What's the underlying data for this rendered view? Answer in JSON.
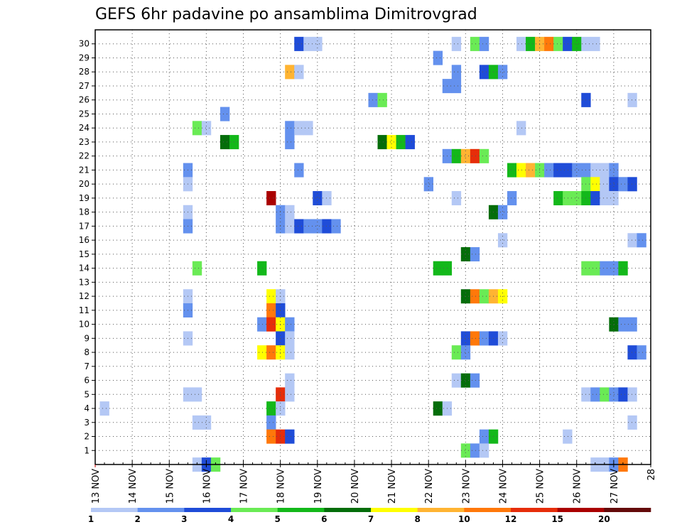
{
  "chart_data": {
    "type": "heatmap",
    "title": "GEFS 6hr padavine po ansamblima Dimitrovgrad",
    "x_tick_labels": [
      "13 NOV",
      "14 NOV",
      "15 NOV",
      "16 NOV",
      "17 NOV",
      "18 NOV",
      "19 NOV",
      "20 NOV",
      "21 NOV",
      "22 NOV",
      "23 NOV",
      "24 NOV",
      "25 NOV",
      "26 NOV",
      "27 NOV",
      "28"
    ],
    "y_tick_labels": [
      "1",
      "2",
      "3",
      "4",
      "5",
      "6",
      "7",
      "8",
      "9",
      "10",
      "11",
      "12",
      "13",
      "14",
      "15",
      "16",
      "17",
      "18",
      "19",
      "20",
      "21",
      "22",
      "23",
      "24",
      "25",
      "26",
      "27",
      "28",
      "29",
      "30"
    ],
    "grid": true,
    "time_step_hours": 6,
    "colorbar": {
      "labels": [
        "1",
        "2",
        "3",
        "4",
        "5",
        "6",
        "7",
        "8",
        "10",
        "12",
        "15",
        "20"
      ],
      "colors": [
        "#b4c8f5",
        "#6491ee",
        "#1f4cd8",
        "#6aeb55",
        "#13b81a",
        "#046d0a",
        "#ffff00",
        "#ffb432",
        "#ff780a",
        "#e62d0a",
        "#aa0000",
        "#640a0a"
      ]
    },
    "cells": [
      {
        "m": 30,
        "t": "18 NOV 12Z",
        "c": 2
      },
      {
        "m": 30,
        "t": "18 NOV 18Z",
        "c": 0
      },
      {
        "m": 30,
        "t": "19 NOV 00Z",
        "c": 0
      },
      {
        "m": 30,
        "t": "22 NOV 18Z",
        "c": 0
      },
      {
        "m": 30,
        "t": "23 NOV 06Z",
        "c": 3
      },
      {
        "m": 30,
        "t": "23 NOV 12Z",
        "c": 1
      },
      {
        "m": 30,
        "t": "24 NOV 12Z",
        "c": 0
      },
      {
        "m": 30,
        "t": "24 NOV 18Z",
        "c": 4
      },
      {
        "m": 30,
        "t": "25 NOV 00Z",
        "c": 7
      },
      {
        "m": 30,
        "t": "25 NOV 06Z",
        "c": 8
      },
      {
        "m": 30,
        "t": "25 NOV 12Z",
        "c": 3
      },
      {
        "m": 30,
        "t": "25 NOV 18Z",
        "c": 2
      },
      {
        "m": 30,
        "t": "26 NOV 00Z",
        "c": 4
      },
      {
        "m": 30,
        "t": "26 NOV 06Z",
        "c": 0
      },
      {
        "m": 30,
        "t": "26 NOV 12Z",
        "c": 0
      },
      {
        "m": 29,
        "t": "22 NOV 06Z",
        "c": 1
      },
      {
        "m": 28,
        "t": "18 NOV 06Z",
        "c": 7
      },
      {
        "m": 28,
        "t": "18 NOV 12Z",
        "c": 0
      },
      {
        "m": 28,
        "t": "22 NOV 18Z",
        "c": 1
      },
      {
        "m": 28,
        "t": "23 NOV 12Z",
        "c": 2
      },
      {
        "m": 28,
        "t": "23 NOV 18Z",
        "c": 4
      },
      {
        "m": 28,
        "t": "24 NOV 00Z",
        "c": 1
      },
      {
        "m": 27,
        "t": "22 NOV 12Z",
        "c": 1
      },
      {
        "m": 27,
        "t": "22 NOV 18Z",
        "c": 1
      },
      {
        "m": 26,
        "t": "20 NOV 12Z",
        "c": 1
      },
      {
        "m": 26,
        "t": "20 NOV 18Z",
        "c": 3
      },
      {
        "m": 26,
        "t": "26 NOV 06Z",
        "c": 2
      },
      {
        "m": 26,
        "t": "27 NOV 12Z",
        "c": 0
      },
      {
        "m": 25,
        "t": "16 NOV 12Z",
        "c": 1
      },
      {
        "m": 24,
        "t": "15 NOV 18Z",
        "c": 3
      },
      {
        "m": 24,
        "t": "16 NOV 00Z",
        "c": 0
      },
      {
        "m": 24,
        "t": "18 NOV 06Z",
        "c": 1
      },
      {
        "m": 24,
        "t": "18 NOV 12Z",
        "c": 0
      },
      {
        "m": 24,
        "t": "18 NOV 18Z",
        "c": 0
      },
      {
        "m": 24,
        "t": "24 NOV 12Z",
        "c": 0
      },
      {
        "m": 23,
        "t": "16 NOV 12Z",
        "c": 5
      },
      {
        "m": 23,
        "t": "16 NOV 18Z",
        "c": 4
      },
      {
        "m": 23,
        "t": "18 NOV 06Z",
        "c": 1
      },
      {
        "m": 23,
        "t": "20 NOV 18Z",
        "c": 5
      },
      {
        "m": 23,
        "t": "21 NOV 00Z",
        "c": 6
      },
      {
        "m": 23,
        "t": "21 NOV 06Z",
        "c": 4
      },
      {
        "m": 23,
        "t": "21 NOV 12Z",
        "c": 2
      },
      {
        "m": 22,
        "t": "22 NOV 12Z",
        "c": 1
      },
      {
        "m": 22,
        "t": "22 NOV 18Z",
        "c": 4
      },
      {
        "m": 22,
        "t": "23 NOV 00Z",
        "c": 7
      },
      {
        "m": 22,
        "t": "23 NOV 06Z",
        "c": 9
      },
      {
        "m": 22,
        "t": "23 NOV 12Z",
        "c": 3
      },
      {
        "m": 21,
        "t": "15 NOV 12Z",
        "c": 1
      },
      {
        "m": 21,
        "t": "18 NOV 12Z",
        "c": 1
      },
      {
        "m": 21,
        "t": "24 NOV 06Z",
        "c": 4
      },
      {
        "m": 21,
        "t": "24 NOV 12Z",
        "c": 6
      },
      {
        "m": 21,
        "t": "24 NOV 18Z",
        "c": 7
      },
      {
        "m": 21,
        "t": "25 NOV 00Z",
        "c": 3
      },
      {
        "m": 21,
        "t": "25 NOV 06Z",
        "c": 1
      },
      {
        "m": 21,
        "t": "25 NOV 12Z",
        "c": 2
      },
      {
        "m": 21,
        "t": "25 NOV 18Z",
        "c": 2
      },
      {
        "m": 21,
        "t": "26 NOV 00Z",
        "c": 1
      },
      {
        "m": 21,
        "t": "26 NOV 06Z",
        "c": 1
      },
      {
        "m": 21,
        "t": "26 NOV 12Z",
        "c": 0
      },
      {
        "m": 21,
        "t": "26 NOV 18Z",
        "c": 0
      },
      {
        "m": 21,
        "t": "27 NOV 00Z",
        "c": 1
      },
      {
        "m": 20,
        "t": "15 NOV 12Z",
        "c": 0
      },
      {
        "m": 20,
        "t": "22 NOV 00Z",
        "c": 1
      },
      {
        "m": 20,
        "t": "26 NOV 06Z",
        "c": 3
      },
      {
        "m": 20,
        "t": "26 NOV 12Z",
        "c": 6
      },
      {
        "m": 20,
        "t": "26 NOV 18Z",
        "c": 0
      },
      {
        "m": 20,
        "t": "27 NOV 00Z",
        "c": 2
      },
      {
        "m": 20,
        "t": "27 NOV 06Z",
        "c": 1
      },
      {
        "m": 20,
        "t": "27 NOV 12Z",
        "c": 2
      },
      {
        "m": 19,
        "t": "17 NOV 18Z",
        "c": 10
      },
      {
        "m": 19,
        "t": "19 NOV 00Z",
        "c": 2
      },
      {
        "m": 19,
        "t": "19 NOV 06Z",
        "c": 0
      },
      {
        "m": 19,
        "t": "22 NOV 18Z",
        "c": 0
      },
      {
        "m": 19,
        "t": "24 NOV 06Z",
        "c": 1
      },
      {
        "m": 19,
        "t": "25 NOV 12Z",
        "c": 4
      },
      {
        "m": 19,
        "t": "25 NOV 18Z",
        "c": 3
      },
      {
        "m": 19,
        "t": "26 NOV 00Z",
        "c": 3
      },
      {
        "m": 19,
        "t": "26 NOV 06Z",
        "c": 4
      },
      {
        "m": 19,
        "t": "26 NOV 12Z",
        "c": 2
      },
      {
        "m": 19,
        "t": "26 NOV 18Z",
        "c": 0
      },
      {
        "m": 19,
        "t": "27 NOV 00Z",
        "c": 0
      },
      {
        "m": 18,
        "t": "15 NOV 12Z",
        "c": 0
      },
      {
        "m": 18,
        "t": "18 NOV 00Z",
        "c": 1
      },
      {
        "m": 18,
        "t": "18 NOV 06Z",
        "c": 0
      },
      {
        "m": 18,
        "t": "23 NOV 18Z",
        "c": 5
      },
      {
        "m": 18,
        "t": "24 NOV 00Z",
        "c": 1
      },
      {
        "m": 17,
        "t": "15 NOV 12Z",
        "c": 1
      },
      {
        "m": 17,
        "t": "18 NOV 00Z",
        "c": 1
      },
      {
        "m": 17,
        "t": "18 NOV 06Z",
        "c": 0
      },
      {
        "m": 17,
        "t": "18 NOV 12Z",
        "c": 2
      },
      {
        "m": 17,
        "t": "18 NOV 18Z",
        "c": 1
      },
      {
        "m": 17,
        "t": "19 NOV 00Z",
        "c": 1
      },
      {
        "m": 17,
        "t": "19 NOV 06Z",
        "c": 2
      },
      {
        "m": 17,
        "t": "19 NOV 12Z",
        "c": 1
      },
      {
        "m": 16,
        "t": "24 NOV 00Z",
        "c": 0
      },
      {
        "m": 16,
        "t": "27 NOV 12Z",
        "c": 0
      },
      {
        "m": 16,
        "t": "27 NOV 18Z",
        "c": 1
      },
      {
        "m": 15,
        "t": "23 NOV 00Z",
        "c": 5
      },
      {
        "m": 15,
        "t": "23 NOV 06Z",
        "c": 1
      },
      {
        "m": 14,
        "t": "15 NOV 18Z",
        "c": 3
      },
      {
        "m": 14,
        "t": "17 NOV 12Z",
        "c": 4
      },
      {
        "m": 14,
        "t": "22 NOV 06Z",
        "c": 4
      },
      {
        "m": 14,
        "t": "22 NOV 12Z",
        "c": 4
      },
      {
        "m": 14,
        "t": "26 NOV 06Z",
        "c": 3
      },
      {
        "m": 14,
        "t": "26 NOV 12Z",
        "c": 3
      },
      {
        "m": 14,
        "t": "26 NOV 18Z",
        "c": 1
      },
      {
        "m": 14,
        "t": "27 NOV 00Z",
        "c": 1
      },
      {
        "m": 14,
        "t": "27 NOV 06Z",
        "c": 4
      },
      {
        "m": 12,
        "t": "15 NOV 12Z",
        "c": 0
      },
      {
        "m": 12,
        "t": "17 NOV 18Z",
        "c": 6
      },
      {
        "m": 12,
        "t": "18 NOV 00Z",
        "c": 0
      },
      {
        "m": 12,
        "t": "23 NOV 00Z",
        "c": 5
      },
      {
        "m": 12,
        "t": "23 NOV 06Z",
        "c": 8
      },
      {
        "m": 12,
        "t": "23 NOV 12Z",
        "c": 3
      },
      {
        "m": 12,
        "t": "23 NOV 18Z",
        "c": 7
      },
      {
        "m": 12,
        "t": "24 NOV 00Z",
        "c": 6
      },
      {
        "m": 11,
        "t": "15 NOV 12Z",
        "c": 1
      },
      {
        "m": 11,
        "t": "17 NOV 18Z",
        "c": 8
      },
      {
        "m": 11,
        "t": "18 NOV 00Z",
        "c": 2
      },
      {
        "m": 10,
        "t": "17 NOV 12Z",
        "c": 1
      },
      {
        "m": 10,
        "t": "17 NOV 18Z",
        "c": 9
      },
      {
        "m": 10,
        "t": "18 NOV 00Z",
        "c": 6
      },
      {
        "m": 10,
        "t": "18 NOV 06Z",
        "c": 1
      },
      {
        "m": 10,
        "t": "27 NOV 00Z",
        "c": 5
      },
      {
        "m": 10,
        "t": "27 NOV 06Z",
        "c": 1
      },
      {
        "m": 10,
        "t": "27 NOV 12Z",
        "c": 1
      },
      {
        "m": 9,
        "t": "15 NOV 12Z",
        "c": 0
      },
      {
        "m": 9,
        "t": "18 NOV 00Z",
        "c": 2
      },
      {
        "m": 9,
        "t": "18 NOV 06Z",
        "c": 0
      },
      {
        "m": 9,
        "t": "23 NOV 00Z",
        "c": 2
      },
      {
        "m": 9,
        "t": "23 NOV 06Z",
        "c": 8
      },
      {
        "m": 9,
        "t": "23 NOV 12Z",
        "c": 1
      },
      {
        "m": 9,
        "t": "23 NOV 18Z",
        "c": 2
      },
      {
        "m": 9,
        "t": "24 NOV 00Z",
        "c": 0
      },
      {
        "m": 8,
        "t": "17 NOV 12Z",
        "c": 6
      },
      {
        "m": 8,
        "t": "17 NOV 18Z",
        "c": 8
      },
      {
        "m": 8,
        "t": "18 NOV 00Z",
        "c": 6
      },
      {
        "m": 8,
        "t": "18 NOV 06Z",
        "c": 0
      },
      {
        "m": 8,
        "t": "22 NOV 18Z",
        "c": 3
      },
      {
        "m": 8,
        "t": "23 NOV 00Z",
        "c": 1
      },
      {
        "m": 8,
        "t": "27 NOV 12Z",
        "c": 2
      },
      {
        "m": 8,
        "t": "27 NOV 18Z",
        "c": 1
      },
      {
        "m": 6,
        "t": "18 NOV 06Z",
        "c": 0
      },
      {
        "m": 6,
        "t": "22 NOV 18Z",
        "c": 0
      },
      {
        "m": 6,
        "t": "23 NOV 00Z",
        "c": 5
      },
      {
        "m": 6,
        "t": "23 NOV 06Z",
        "c": 1
      },
      {
        "m": 5,
        "t": "15 NOV 12Z",
        "c": 0
      },
      {
        "m": 5,
        "t": "15 NOV 18Z",
        "c": 0
      },
      {
        "m": 5,
        "t": "18 NOV 00Z",
        "c": 9
      },
      {
        "m": 5,
        "t": "18 NOV 06Z",
        "c": 0
      },
      {
        "m": 5,
        "t": "26 NOV 06Z",
        "c": 0
      },
      {
        "m": 5,
        "t": "26 NOV 12Z",
        "c": 1
      },
      {
        "m": 5,
        "t": "26 NOV 18Z",
        "c": 3
      },
      {
        "m": 5,
        "t": "27 NOV 00Z",
        "c": 1
      },
      {
        "m": 5,
        "t": "27 NOV 06Z",
        "c": 2
      },
      {
        "m": 5,
        "t": "27 NOV 12Z",
        "c": 0
      },
      {
        "m": 4,
        "t": "13 NOV 06Z",
        "c": 0
      },
      {
        "m": 4,
        "t": "17 NOV 18Z",
        "c": 4
      },
      {
        "m": 4,
        "t": "18 NOV 00Z",
        "c": 0
      },
      {
        "m": 4,
        "t": "22 NOV 06Z",
        "c": 5
      },
      {
        "m": 4,
        "t": "22 NOV 12Z",
        "c": 0
      },
      {
        "m": 3,
        "t": "15 NOV 18Z",
        "c": 0
      },
      {
        "m": 3,
        "t": "16 NOV 00Z",
        "c": 0
      },
      {
        "m": 3,
        "t": "17 NOV 18Z",
        "c": 1
      },
      {
        "m": 3,
        "t": "27 NOV 12Z",
        "c": 0
      },
      {
        "m": 2,
        "t": "17 NOV 18Z",
        "c": 8
      },
      {
        "m": 2,
        "t": "18 NOV 00Z",
        "c": 9
      },
      {
        "m": 2,
        "t": "18 NOV 06Z",
        "c": 2
      },
      {
        "m": 2,
        "t": "23 NOV 12Z",
        "c": 1
      },
      {
        "m": 2,
        "t": "23 NOV 18Z",
        "c": 4
      },
      {
        "m": 2,
        "t": "25 NOV 18Z",
        "c": 0
      },
      {
        "m": 1,
        "t": "23 NOV 00Z",
        "c": 3
      },
      {
        "m": 1,
        "t": "23 NOV 06Z",
        "c": 1
      },
      {
        "m": 1,
        "t": "23 NOV 12Z",
        "c": 0
      },
      {
        "m": 0,
        "t": "15 NOV 18Z",
        "c": 0
      },
      {
        "m": 0,
        "t": "16 NOV 00Z",
        "c": 2
      },
      {
        "m": 0,
        "t": "16 NOV 06Z",
        "c": 3
      },
      {
        "m": 0,
        "t": "26 NOV 12Z",
        "c": 0
      },
      {
        "m": 0,
        "t": "26 NOV 18Z",
        "c": 0
      },
      {
        "m": 0,
        "t": "27 NOV 00Z",
        "c": 1
      },
      {
        "m": 0,
        "t": "27 NOV 06Z",
        "c": 8
      }
    ]
  }
}
